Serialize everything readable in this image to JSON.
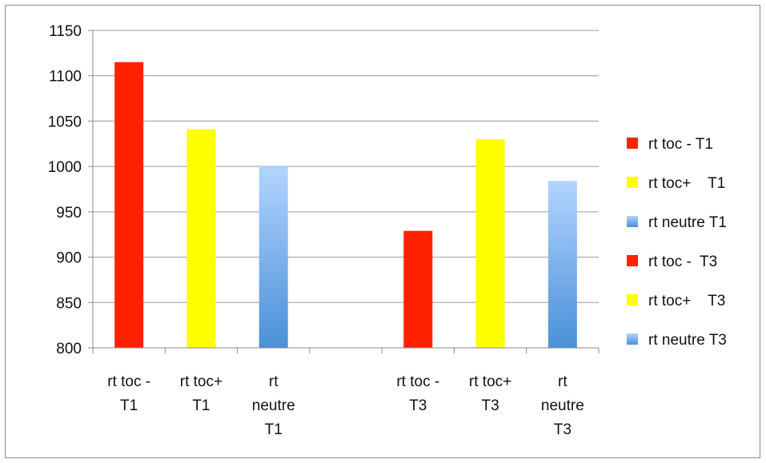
{
  "chart_data": {
    "type": "bar",
    "title": "",
    "xlabel": "",
    "ylabel": "",
    "ylim": [
      800,
      1150
    ],
    "yticks": [
      800,
      850,
      900,
      950,
      1000,
      1050,
      1100,
      1150
    ],
    "grid": true,
    "legend_position": "right",
    "slots": [
      {
        "label_lines": [
          "rt toc -",
          "T1"
        ],
        "series": 0,
        "value": 1115
      },
      {
        "label_lines": [
          "rt toc+",
          "T1"
        ],
        "series": 1,
        "value": 1041
      },
      {
        "label_lines": [
          "rt",
          "neutre",
          "T1"
        ],
        "series": 2,
        "value": 1000
      },
      {
        "label_lines": [],
        "series": null,
        "value": null
      },
      {
        "label_lines": [
          "rt toc -",
          "T3"
        ],
        "series": 3,
        "value": 929
      },
      {
        "label_lines": [
          "rt toc+",
          "T3"
        ],
        "series": 4,
        "value": 1030
      },
      {
        "label_lines": [
          "rt",
          "neutre",
          "T3"
        ],
        "series": 5,
        "value": 984
      }
    ],
    "series": [
      {
        "name": "rt toc - T1",
        "color": "#ff2200",
        "gradient": false
      },
      {
        "name": "rt toc+    T1",
        "color": "#ffff00",
        "gradient": false
      },
      {
        "name": "rt neutre T1",
        "color": "#4a90d9",
        "color_top": "#b3d4ff",
        "gradient": true
      },
      {
        "name": "rt toc -  T3",
        "color": "#ff2200",
        "gradient": false
      },
      {
        "name": "rt toc+    T3",
        "color": "#ffff00",
        "gradient": false
      },
      {
        "name": "rt neutre T3",
        "color": "#4a90d9",
        "color_top": "#b3d4ff",
        "gradient": true
      }
    ]
  }
}
